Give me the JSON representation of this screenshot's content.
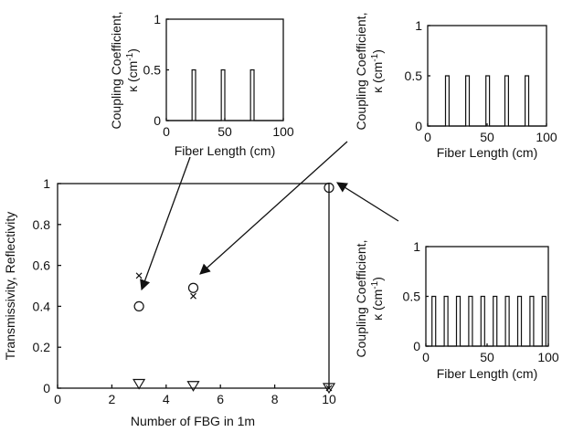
{
  "chart_data": [
    {
      "type": "scatter",
      "role": "main",
      "title": "",
      "xlabel": "Number of FBG in 1m",
      "ylabel": "Transmissivity, Reflectivity",
      "xlim": [
        0,
        10
      ],
      "ylim": [
        0,
        1
      ],
      "xticks": [
        "0",
        "2",
        "4",
        "6",
        "8",
        "10"
      ],
      "yticks": [
        "0",
        "0.2",
        "0.4",
        "0.6",
        "0.8",
        "1"
      ],
      "series": [
        {
          "marker": "circle",
          "x": [
            3,
            5,
            10
          ],
          "y": [
            0.4,
            0.49,
            0.98
          ]
        },
        {
          "marker": "x",
          "x": [
            3,
            5,
            10
          ],
          "y": [
            0.55,
            0.45,
            0.0
          ]
        },
        {
          "marker": "triangle-down",
          "x": [
            3,
            5,
            10
          ],
          "y": [
            0.02,
            0.01,
            0.0
          ]
        }
      ]
    },
    {
      "type": "line",
      "role": "inset-3-gratings",
      "xlabel": "Fiber Length (cm)",
      "ylabel_line1": "Coupling Coefficient,",
      "ylabel_kappa": "κ (cm",
      "ylabel_exp": "-1",
      "ylabel_close": ")",
      "xlim": [
        0,
        100
      ],
      "ylim": [
        0,
        1
      ],
      "xticks": [
        "0",
        "50",
        "100"
      ],
      "yticks": [
        "0",
        "0.5",
        "1"
      ],
      "level": 0.5,
      "pulses": [
        [
          22,
          25
        ],
        [
          47,
          50
        ],
        [
          72,
          75
        ]
      ]
    },
    {
      "type": "line",
      "role": "inset-5-gratings",
      "xlabel": "Fiber Length (cm)",
      "ylabel_line1": "Coupling Coefficient,",
      "ylabel_kappa": "κ (cm",
      "ylabel_exp": "-1",
      "ylabel_close": ")",
      "xlim": [
        0,
        100
      ],
      "ylim": [
        0,
        1
      ],
      "xticks": [
        "0",
        "50",
        "100"
      ],
      "yticks": [
        "0",
        "0.5",
        "1"
      ],
      "level": 0.5,
      "pulses": [
        [
          15,
          18
        ],
        [
          32,
          35
        ],
        [
          49,
          52
        ],
        [
          65,
          68
        ],
        [
          82,
          85
        ]
      ]
    },
    {
      "type": "line",
      "role": "inset-10-gratings",
      "xlabel": "Fiber Length (cm)",
      "ylabel_line1": "Coupling Coefficient,",
      "ylabel_kappa": "κ (cm",
      "ylabel_exp": "-1",
      "ylabel_close": ")",
      "xlim": [
        0,
        100
      ],
      "ylim": [
        0,
        1
      ],
      "xticks": [
        "0",
        "50",
        "100"
      ],
      "yticks": [
        "0",
        "0.5",
        "1"
      ],
      "level": 0.5,
      "pulses": [
        [
          5,
          8
        ],
        [
          15,
          18
        ],
        [
          25,
          28
        ],
        [
          35,
          38
        ],
        [
          45,
          48
        ],
        [
          55,
          58
        ],
        [
          65,
          68
        ],
        [
          75,
          78
        ],
        [
          85,
          88
        ],
        [
          95,
          98
        ]
      ]
    }
  ]
}
